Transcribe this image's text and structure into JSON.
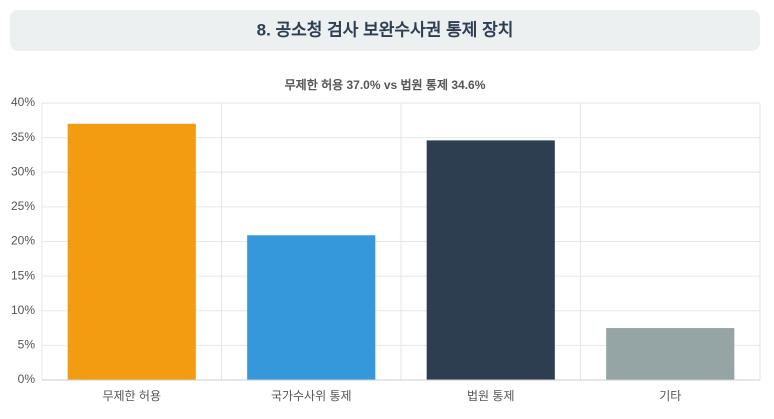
{
  "chart_data": {
    "type": "bar",
    "title": "8. 공소청 검사 보완수사권 통제 장치",
    "subtitle": "무제한 허용 37.0% vs 법원 통제 34.6%",
    "categories": [
      "무제한 허용",
      "국가수사위 통제",
      "법원 통제",
      "기타"
    ],
    "values": [
      37.0,
      20.9,
      34.6,
      7.5
    ],
    "colors": [
      "#f39c12",
      "#3498db",
      "#2c3e50",
      "#95a5a6"
    ],
    "ylim": [
      0,
      40
    ],
    "yticks": [
      {
        "value": 0,
        "label": "0%"
      },
      {
        "value": 5,
        "label": "5%"
      },
      {
        "value": 10,
        "label": "10%"
      },
      {
        "value": 15,
        "label": "15%"
      },
      {
        "value": 20,
        "label": "20%"
      },
      {
        "value": 25,
        "label": "25%"
      },
      {
        "value": 30,
        "label": "30%"
      },
      {
        "value": 35,
        "label": "35%"
      },
      {
        "value": 40,
        "label": "40%"
      }
    ],
    "grid": true
  }
}
